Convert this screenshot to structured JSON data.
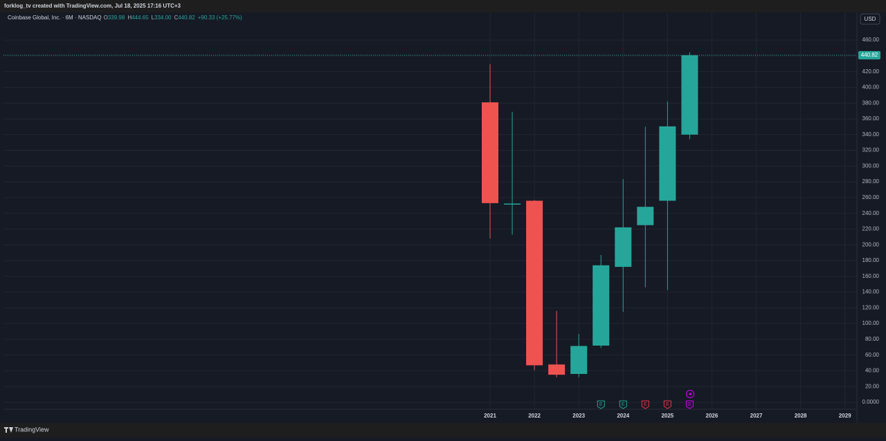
{
  "header": {
    "text": "forklog_tv created with TradingView.com, Jul 18, 2025 17:16 UTC+3"
  },
  "footer": {
    "brand": "TradingView"
  },
  "chart_data": {
    "type": "candlestick",
    "symbol": "Coinbase Global, Inc. · 6M · NASDAQ",
    "ohlc_legend": [
      {
        "key": "O",
        "value": "339.98"
      },
      {
        "key": "H",
        "value": "444.65"
      },
      {
        "key": "L",
        "value": "334.00"
      },
      {
        "key": "C",
        "value": "440.82"
      }
    ],
    "change": "+90.33 (+25.77%)",
    "currency": "USD",
    "x": [
      2021,
      2021.5,
      2022,
      2022.5,
      2023,
      2023.5,
      2024,
      2024.5,
      2025,
      2025.5
    ],
    "open": [
      381,
      251.5,
      256,
      48,
      36,
      72,
      172,
      225,
      256,
      339.98
    ],
    "high": [
      429.5,
      369,
      257,
      116,
      87,
      187,
      283.5,
      350,
      382,
      444.65
    ],
    "low": [
      208,
      213,
      40.8,
      31.6,
      31.8,
      69,
      114.8,
      146,
      142.6,
      334.0
    ],
    "close": [
      253,
      252.4,
      47,
      35,
      71.5,
      174,
      222.2,
      248.3,
      350.5,
      440.82
    ],
    "up_color": "#26a69a",
    "down_color": "#ef5350",
    "xlim": [
      2010.03,
      2029.27
    ],
    "xticks": [
      2021,
      2022,
      2023,
      2024,
      2025,
      2026,
      2027,
      2028,
      2029
    ],
    "ylim": [
      -8.8,
      495.2
    ],
    "yticks": [
      {
        "value": 0,
        "label": "0.0000"
      },
      {
        "value": 20,
        "label": "20.00"
      },
      {
        "value": 40,
        "label": "40.00"
      },
      {
        "value": 60,
        "label": "60.00"
      },
      {
        "value": 80,
        "label": "80.00"
      },
      {
        "value": 100,
        "label": "100.00"
      },
      {
        "value": 120,
        "label": "120.00"
      },
      {
        "value": 140,
        "label": "140.00"
      },
      {
        "value": 160,
        "label": "160.00"
      },
      {
        "value": 180,
        "label": "180.00"
      },
      {
        "value": 200,
        "label": "200.00"
      },
      {
        "value": 220,
        "label": "220.00"
      },
      {
        "value": 240,
        "label": "240.00"
      },
      {
        "value": 260,
        "label": "260.00"
      },
      {
        "value": 280,
        "label": "280.00"
      },
      {
        "value": 300,
        "label": "300.00"
      },
      {
        "value": 320,
        "label": "320.00"
      },
      {
        "value": 340,
        "label": "340.00"
      },
      {
        "value": 360,
        "label": "360.00"
      },
      {
        "value": 380,
        "label": "380.00"
      },
      {
        "value": 400,
        "label": "400.00"
      },
      {
        "value": 420,
        "label": "420.00"
      },
      {
        "value": 440,
        "label": "440.00"
      },
      {
        "value": 460,
        "label": "460.00"
      }
    ],
    "grid": true,
    "events": [
      {
        "x": 2023.5,
        "label": "E",
        "color": "#22ab94"
      },
      {
        "x": 2024,
        "label": "E",
        "color": "#22ab94"
      },
      {
        "x": 2024.5,
        "label": "E",
        "color": "#f23645"
      },
      {
        "x": 2025,
        "label": "E",
        "color": "#f23645"
      },
      {
        "x": 2025.5,
        "label": "E",
        "color": "#d500f9"
      }
    ]
  }
}
